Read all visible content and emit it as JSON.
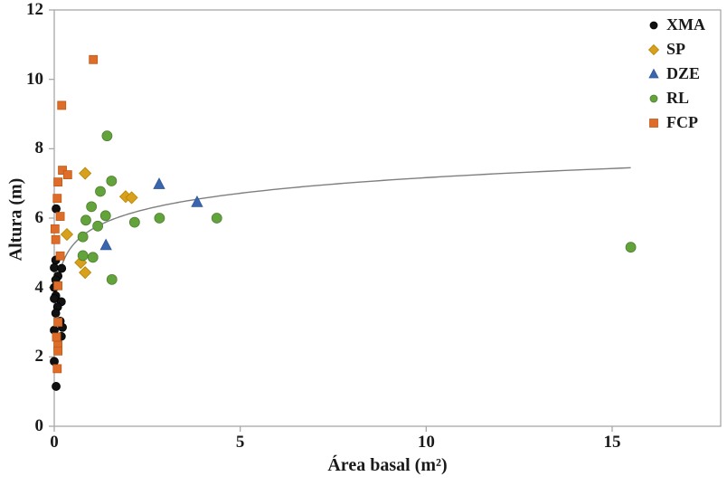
{
  "chart_data": {
    "type": "scatter",
    "title": "",
    "xlabel": "Área basal (m²)",
    "ylabel": "Altura (m)",
    "xlim": [
      0,
      17.9
    ],
    "ylim": [
      0,
      12
    ],
    "x_ticks": [
      0,
      5,
      10,
      15
    ],
    "y_ticks": [
      0,
      2,
      4,
      6,
      8,
      10,
      12
    ],
    "grid": false,
    "legend_position": "top-right-inside",
    "axis_color": "#a8a8a8",
    "series": [
      {
        "name": "XMA",
        "marker": "circle",
        "color": "#111111",
        "stroke": "#000000",
        "size": 9,
        "points": [
          [
            0.05,
            6.27
          ],
          [
            0.04,
            4.79
          ],
          [
            0.0,
            4.57
          ],
          [
            0.2,
            4.55
          ],
          [
            0.1,
            4.33
          ],
          [
            0.04,
            4.22
          ],
          [
            0.0,
            4.0
          ],
          [
            0.04,
            3.76
          ],
          [
            0.0,
            3.68
          ],
          [
            0.19,
            3.59
          ],
          [
            0.09,
            3.44
          ],
          [
            0.04,
            3.26
          ],
          [
            0.16,
            3.03
          ],
          [
            0.22,
            2.85
          ],
          [
            0.0,
            2.77
          ],
          [
            0.19,
            2.59
          ],
          [
            0.0,
            1.87
          ],
          [
            0.05,
            1.15
          ]
        ]
      },
      {
        "name": "SP",
        "marker": "diamond",
        "color": "#D8A01D",
        "stroke": "#b58500",
        "size": 11,
        "points": [
          [
            0.83,
            7.29
          ],
          [
            1.92,
            6.62
          ],
          [
            2.08,
            6.59
          ],
          [
            0.34,
            5.53
          ],
          [
            0.71,
            4.72
          ],
          [
            0.83,
            4.43
          ]
        ]
      },
      {
        "name": "DZE",
        "marker": "triangle",
        "color": "#3A66AE",
        "stroke": "#2F5597",
        "size": 11,
        "points": [
          [
            2.82,
            6.98
          ],
          [
            3.84,
            6.46
          ],
          [
            1.39,
            5.22
          ]
        ]
      },
      {
        "name": "RL",
        "marker": "circle",
        "color": "#63A33C",
        "stroke": "#4f8030",
        "size": 11,
        "points": [
          [
            1.42,
            8.37
          ],
          [
            1.54,
            7.07
          ],
          [
            1.24,
            6.77
          ],
          [
            1.0,
            6.33
          ],
          [
            1.38,
            6.07
          ],
          [
            0.85,
            5.94
          ],
          [
            2.16,
            5.88
          ],
          [
            2.83,
            6.0
          ],
          [
            1.17,
            5.77
          ],
          [
            0.77,
            5.46
          ],
          [
            0.77,
            4.92
          ],
          [
            1.04,
            4.87
          ],
          [
            1.55,
            4.23
          ],
          [
            4.37,
            6.0
          ],
          [
            15.5,
            5.16
          ]
        ]
      },
      {
        "name": "FCP",
        "marker": "square",
        "color": "#DD6D28",
        "stroke": "#c05a18",
        "size": 9,
        "points": [
          [
            1.05,
            10.57
          ],
          [
            0.2,
            9.25
          ],
          [
            0.22,
            7.38
          ],
          [
            0.36,
            7.25
          ],
          [
            0.1,
            7.04
          ],
          [
            0.08,
            6.57
          ],
          [
            0.16,
            6.05
          ],
          [
            0.02,
            5.69
          ],
          [
            0.04,
            5.38
          ],
          [
            0.16,
            4.91
          ],
          [
            0.1,
            4.05
          ],
          [
            0.1,
            3.0
          ],
          [
            0.06,
            2.57
          ],
          [
            0.1,
            2.33
          ],
          [
            0.1,
            2.17
          ],
          [
            0.08,
            1.66
          ]
        ]
      }
    ],
    "trendline": {
      "type": "logarithmic",
      "equation": "y = 0.65*ln(x) + 5.67",
      "a": 0.65,
      "b": 5.67,
      "x_start": 0.03,
      "x_end": 15.5,
      "color": "#7f7f7f",
      "width": 1.4
    }
  }
}
